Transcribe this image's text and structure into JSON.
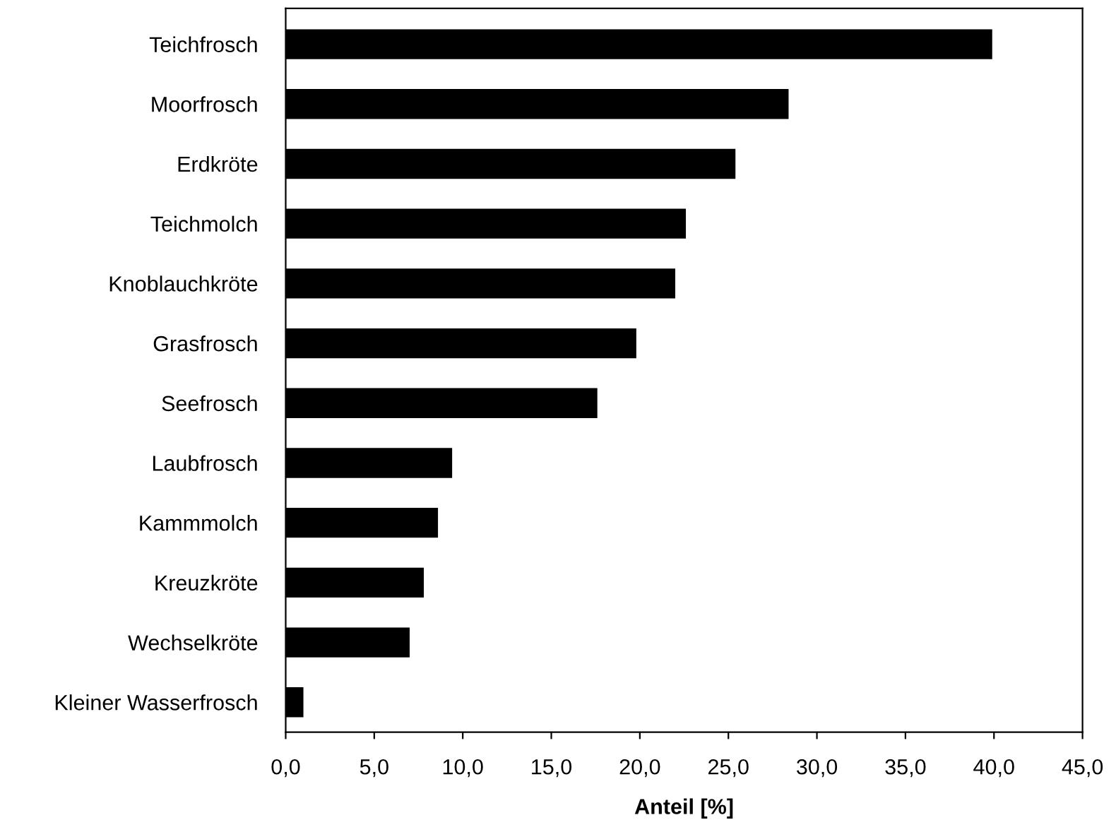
{
  "chart_data": {
    "type": "bar",
    "orientation": "horizontal",
    "xlabel": "Anteil [%]",
    "categories": [
      "Teichfrosch",
      "Moorfrosch",
      "Erdkröte",
      "Teichmolch",
      "Knoblauchkröte",
      "Grasfrosch",
      "Seefrosch",
      "Laubfrosch",
      "Kammmolch",
      "Kreuzkröte",
      "Wechselkröte",
      "Kleiner Wasserfrosch"
    ],
    "values": [
      39.9,
      28.4,
      25.4,
      22.6,
      22.0,
      19.8,
      17.6,
      9.4,
      8.6,
      7.8,
      7.0,
      1.0
    ],
    "color": "#000000",
    "xlim": [
      0,
      45
    ],
    "xticks": [
      {
        "value": 0,
        "label": "0,0"
      },
      {
        "value": 5,
        "label": "5,0"
      },
      {
        "value": 10,
        "label": "10,0"
      },
      {
        "value": 15,
        "label": "15,0"
      },
      {
        "value": 20,
        "label": "20,0"
      },
      {
        "value": 25,
        "label": "25,0"
      },
      {
        "value": 30,
        "label": "30,0"
      },
      {
        "value": 35,
        "label": "35,0"
      },
      {
        "value": 40,
        "label": "40,0"
      },
      {
        "value": 45,
        "label": "45,0"
      }
    ],
    "grid": false,
    "legend": false
  }
}
